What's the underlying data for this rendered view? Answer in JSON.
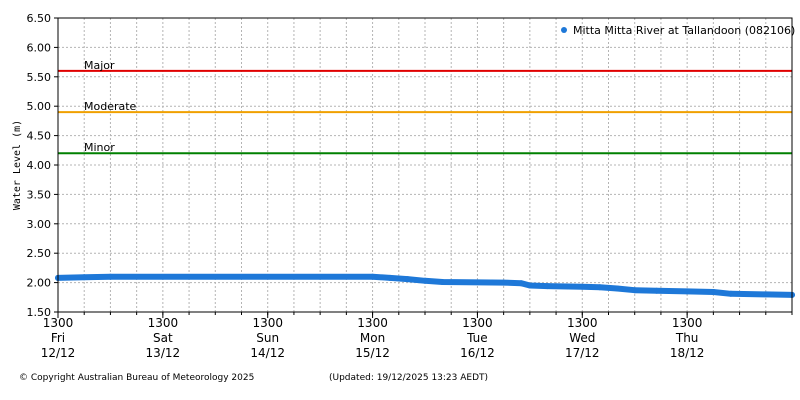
{
  "chart_data": {
    "type": "line",
    "ylabel": "Water Level (m)",
    "ylim": [
      1.5,
      6.5
    ],
    "yticks": [
      "1.50",
      "2.00",
      "2.50",
      "3.00",
      "3.50",
      "4.00",
      "4.50",
      "5.00",
      "5.50",
      "6.00",
      "6.50"
    ],
    "xlim": [
      "2025-12-12T13:00",
      "2025-12-19T13:00"
    ],
    "xticks": [
      {
        "time": "1300",
        "day": "Fri",
        "date": "12/12",
        "at": "2025-12-12T13:00"
      },
      {
        "time": "1300",
        "day": "Sat",
        "date": "13/12",
        "at": "2025-12-13T13:00"
      },
      {
        "time": "1300",
        "day": "Sun",
        "date": "14/12",
        "at": "2025-12-14T13:00"
      },
      {
        "time": "1300",
        "day": "Mon",
        "date": "15/12",
        "at": "2025-12-15T13:00"
      },
      {
        "time": "1300",
        "day": "Tue",
        "date": "16/12",
        "at": "2025-12-16T13:00"
      },
      {
        "time": "1300",
        "day": "Wed",
        "date": "17/12",
        "at": "2025-12-17T13:00"
      },
      {
        "time": "1300",
        "day": "Thu",
        "date": "18/12",
        "at": "2025-12-18T13:00"
      }
    ],
    "grid": true,
    "legend_position": "top-right",
    "thresholds": [
      {
        "label": "Major",
        "value": 5.6,
        "color": "#e00000"
      },
      {
        "label": "Moderate",
        "value": 4.9,
        "color": "#f0a000"
      },
      {
        "label": "Minor",
        "value": 4.2,
        "color": "#008000"
      }
    ],
    "series": [
      {
        "name": "Mitta Mitta River at Tallandoon (082106)",
        "color": "#1e78d8",
        "points": [
          [
            "2025-12-12T13:00",
            2.08
          ],
          [
            "2025-12-12T19:00",
            2.09
          ],
          [
            "2025-12-13T01:00",
            2.1
          ],
          [
            "2025-12-15T13:00",
            2.1
          ],
          [
            "2025-12-15T17:00",
            2.08
          ],
          [
            "2025-12-15T21:00",
            2.06
          ],
          [
            "2025-12-16T01:00",
            2.03
          ],
          [
            "2025-12-16T05:00",
            2.01
          ],
          [
            "2025-12-16T19:00",
            2.0
          ],
          [
            "2025-12-16T23:00",
            1.99
          ],
          [
            "2025-12-17T01:00",
            1.95
          ],
          [
            "2025-12-17T05:00",
            1.94
          ],
          [
            "2025-12-17T13:00",
            1.93
          ],
          [
            "2025-12-17T17:00",
            1.92
          ],
          [
            "2025-12-17T21:00",
            1.9
          ],
          [
            "2025-12-18T01:00",
            1.87
          ],
          [
            "2025-12-18T06:00",
            1.86
          ],
          [
            "2025-12-18T13:00",
            1.85
          ],
          [
            "2025-12-18T19:00",
            1.84
          ],
          [
            "2025-12-18T23:00",
            1.81
          ],
          [
            "2025-12-19T07:00",
            1.8
          ],
          [
            "2025-12-19T13:00",
            1.79
          ]
        ]
      }
    ]
  },
  "footer": {
    "copyright": "© Copyright Australian Bureau of Meteorology 2025",
    "updated": "(Updated: 19/12/2025 13:23 AEDT)"
  }
}
